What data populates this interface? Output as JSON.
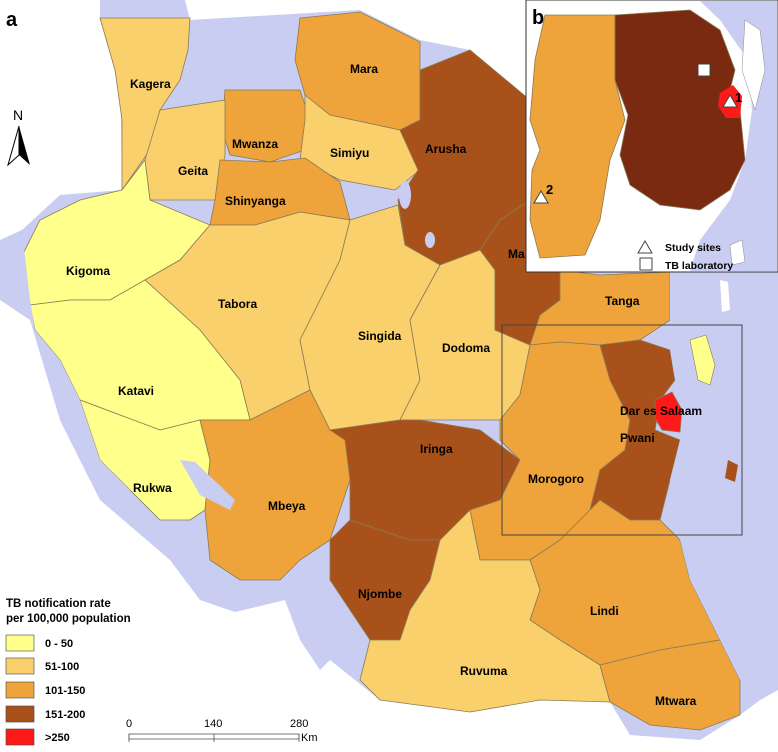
{
  "panels": {
    "main_letter": "a",
    "inset_letter": "b"
  },
  "north_arrow": {
    "label": "N",
    "icon": "north-arrow-icon"
  },
  "colors": {
    "water": "#c9cdf2",
    "c0_50": "#ffff8c",
    "c51_100": "#fad06c",
    "c101_150": "#eea43a",
    "c151_200": "#a9511a",
    "c250": "#ff1a1a",
    "inset_dark": "#7a2a10"
  },
  "regions": [
    {
      "name": "Kagera",
      "class": "c51_100"
    },
    {
      "name": "Mara",
      "class": "c101_150"
    },
    {
      "name": "Mwanza",
      "class": "c101_150"
    },
    {
      "name": "Geita",
      "class": "c51_100"
    },
    {
      "name": "Simiyu",
      "class": "c51_100"
    },
    {
      "name": "Shinyanga",
      "class": "c101_150"
    },
    {
      "name": "Arusha",
      "class": "c151_200"
    },
    {
      "name": "Kigoma",
      "class": "c0_50"
    },
    {
      "name": "Tabora",
      "class": "c51_100"
    },
    {
      "name": "Singida",
      "class": "c51_100"
    },
    {
      "name": "Dodoma",
      "class": "c51_100"
    },
    {
      "name": "Ma",
      "class": "c151_200"
    },
    {
      "name": "Tanga",
      "class": "c101_150"
    },
    {
      "name": "Katavi",
      "class": "c0_50"
    },
    {
      "name": "Rukwa",
      "class": "c0_50"
    },
    {
      "name": "Mbeya",
      "class": "c101_150"
    },
    {
      "name": "Iringa",
      "class": "c151_200"
    },
    {
      "name": "Morogoro",
      "class": "c101_150"
    },
    {
      "name": "Dar es Salaam",
      "class": "c250"
    },
    {
      "name": "Pwani",
      "class": "c151_200"
    },
    {
      "name": "Njombe",
      "class": "c151_200"
    },
    {
      "name": "Lindi",
      "class": "c101_150"
    },
    {
      "name": "Ruvuma",
      "class": "c51_100"
    },
    {
      "name": "Mtwara",
      "class": "c101_150"
    }
  ],
  "legend": {
    "title_line1": "TB notification rate",
    "title_line2": "per 100,000 population",
    "items": [
      {
        "label": "0 - 50",
        "class": "c0_50"
      },
      {
        "label": "51-100",
        "class": "c51_100"
      },
      {
        "label": "101-150",
        "class": "c101_150"
      },
      {
        "label": "151-200",
        "class": "c151_200"
      },
      {
        "label": ">250",
        "class": "c250"
      }
    ]
  },
  "scale_bar": {
    "ticks": [
      "0",
      "140",
      "280"
    ],
    "unit": "Km"
  },
  "inset": {
    "site_labels": [
      "1",
      "2"
    ],
    "legend": [
      {
        "label": "Study sites",
        "icon": "triangle-icon"
      },
      {
        "label": "TB laboratory",
        "icon": "square-icon"
      }
    ]
  }
}
